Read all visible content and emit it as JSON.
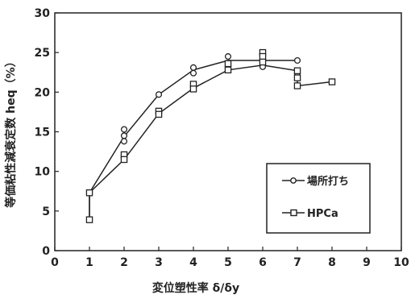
{
  "chart_data": {
    "type": "line",
    "xlabel": "変位塑性率 δ/δy",
    "ylabel": "等価粘性減衰定数 heq（%）",
    "xlim": [
      0,
      10
    ],
    "ylim": [
      0,
      30
    ],
    "xticks": [
      0,
      1,
      2,
      3,
      4,
      5,
      6,
      7,
      8,
      9,
      10
    ],
    "yticks": [
      0,
      5,
      10,
      15,
      20,
      25,
      30
    ],
    "grid": false,
    "legend_position": "lower-right",
    "series": [
      {
        "name": "場所打ち",
        "marker": "circle",
        "line_x": [
          1,
          1,
          2,
          3,
          4,
          5,
          6,
          7
        ],
        "line_y": [
          3.9,
          7.3,
          14.4,
          19.7,
          22.8,
          24.0,
          24.0,
          24.0
        ],
        "points": [
          [
            1,
            3.9
          ],
          [
            1,
            7.3
          ],
          [
            2,
            15.3
          ],
          [
            2,
            14.5
          ],
          [
            2,
            13.8
          ],
          [
            3,
            19.7
          ],
          [
            4,
            23.1
          ],
          [
            4,
            22.4
          ],
          [
            5,
            24.5
          ],
          [
            5,
            23.6
          ],
          [
            6,
            24.9
          ],
          [
            6,
            24.2
          ],
          [
            6,
            23.2
          ],
          [
            7,
            24.0
          ],
          [
            7,
            22.4
          ]
        ]
      },
      {
        "name": "HPCa",
        "marker": "square",
        "line_x": [
          1,
          1,
          2,
          3,
          4,
          5,
          6,
          7,
          7,
          8
        ],
        "line_y": [
          3.9,
          7.3,
          11.5,
          17.3,
          20.5,
          22.8,
          23.4,
          22.7,
          20.8,
          21.3
        ],
        "points": [
          [
            1,
            3.9
          ],
          [
            1,
            7.3
          ],
          [
            2,
            12.1
          ],
          [
            2,
            11.5
          ],
          [
            3,
            17.6
          ],
          [
            3,
            17.2
          ],
          [
            4,
            21.0
          ],
          [
            4,
            20.4
          ],
          [
            5,
            23.6
          ],
          [
            5,
            22.8
          ],
          [
            6,
            25.0
          ],
          [
            6,
            24.5
          ],
          [
            6,
            23.8
          ],
          [
            7,
            22.7
          ],
          [
            7,
            21.8
          ],
          [
            7,
            20.8
          ],
          [
            8,
            21.3
          ]
        ]
      }
    ]
  }
}
